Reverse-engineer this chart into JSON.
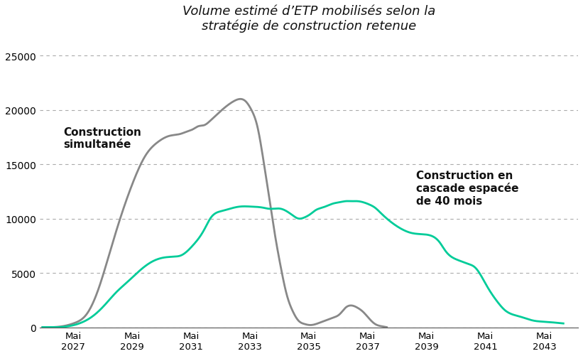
{
  "title": "Volume estimé d’ETP mobilisés selon la\nstratégie de construction retenue",
  "background_color": "#ffffff",
  "grid_color": "#aaaaaa",
  "ylim": [
    0,
    26500
  ],
  "yticks": [
    0,
    5000,
    10000,
    15000,
    20000,
    25000
  ],
  "xtick_years": [
    2027,
    2029,
    2031,
    2033,
    2035,
    2037,
    2039,
    2041,
    2043
  ],
  "simultaneous_label": "Construction\nsimultanée",
  "cascade_label": "Construction en\ncascade espacée\nde 40 mois",
  "simultaneous_color": "#888888",
  "cascade_color": "#00cc99",
  "simultaneous_x": [
    2026.3,
    2026.6,
    2027.0,
    2027.4,
    2027.8,
    2028.2,
    2028.6,
    2029.0,
    2029.4,
    2029.8,
    2030.2,
    2030.6,
    2031.0,
    2031.2,
    2031.4,
    2031.6,
    2031.8,
    2032.0,
    2032.4,
    2032.8,
    2033.0,
    2033.2,
    2033.4,
    2033.6,
    2033.8,
    2034.0,
    2034.2,
    2034.4,
    2034.6,
    2034.8,
    2035.0,
    2035.2,
    2035.4,
    2035.6,
    2035.8,
    2036.0,
    2036.2,
    2036.4,
    2036.6,
    2036.8,
    2037.0,
    2037.2,
    2037.4,
    2037.6,
    2037.8,
    2038.0
  ],
  "simultaneous_y": [
    0,
    0,
    100,
    400,
    1200,
    3500,
    7000,
    10500,
    13500,
    15800,
    17000,
    17600,
    17800,
    18000,
    18200,
    18500,
    18600,
    19000,
    20000,
    20800,
    21000,
    20800,
    20000,
    18500,
    15500,
    12000,
    8500,
    5500,
    3000,
    1500,
    600,
    300,
    200,
    300,
    500,
    700,
    900,
    1200,
    1800,
    2000,
    1800,
    1400,
    800,
    300,
    100,
    0
  ],
  "cascade_x": [
    2026.3,
    2026.8,
    2027.2,
    2027.6,
    2028.0,
    2028.4,
    2028.8,
    2029.2,
    2029.6,
    2030.0,
    2030.4,
    2030.8,
    2031.0,
    2031.4,
    2031.8,
    2032.0,
    2032.4,
    2032.8,
    2033.0,
    2033.4,
    2033.8,
    2034.0,
    2034.4,
    2034.8,
    2035.0,
    2035.2,
    2035.4,
    2035.6,
    2035.8,
    2036.0,
    2036.2,
    2036.4,
    2036.6,
    2036.8,
    2037.0,
    2037.2,
    2037.4,
    2037.6,
    2037.8,
    2038.0,
    2038.4,
    2038.8,
    2039.0,
    2039.4,
    2039.8,
    2040.0,
    2040.4,
    2040.8,
    2041.0,
    2041.4,
    2041.8,
    2042.0,
    2042.5,
    2043.0,
    2043.4,
    2043.8,
    2044.0
  ],
  "cascade_y": [
    0,
    0,
    100,
    400,
    1000,
    2000,
    3200,
    4200,
    5200,
    6000,
    6400,
    6500,
    6600,
    7500,
    9000,
    10000,
    10700,
    11000,
    11100,
    11100,
    11000,
    10900,
    10900,
    10300,
    10000,
    10100,
    10400,
    10800,
    11000,
    11200,
    11400,
    11500,
    11600,
    11600,
    11600,
    11500,
    11300,
    11000,
    10500,
    10000,
    9200,
    8700,
    8600,
    8500,
    7800,
    7000,
    6200,
    5800,
    5500,
    3800,
    2200,
    1600,
    1000,
    600,
    500,
    400,
    350
  ]
}
